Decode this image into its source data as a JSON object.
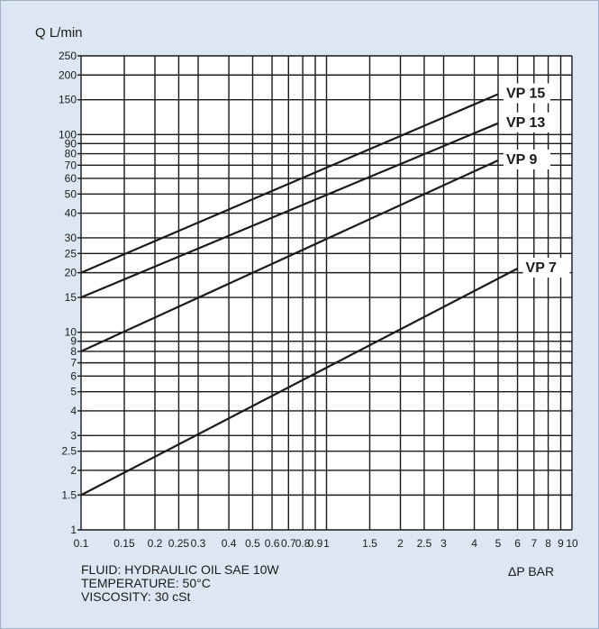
{
  "chart_data": {
    "type": "line",
    "title": "",
    "ylabel": "Q L/min",
    "xlabel": "ΔP BAR",
    "x_scale": "log",
    "y_scale": "log",
    "xlim": [
      0.1,
      10
    ],
    "ylim": [
      1,
      250
    ],
    "grid": true,
    "x_ticks": [
      0.1,
      0.15,
      0.2,
      0.25,
      0.3,
      0.4,
      0.5,
      0.6,
      0.7,
      0.8,
      0.9,
      1,
      1.5,
      2,
      2.5,
      3,
      4,
      5,
      6,
      7,
      8,
      9,
      10
    ],
    "x_tick_labels": [
      "0.1",
      "0.15",
      "0.2",
      "0.25",
      "0.3",
      "0.4",
      "0.5",
      "0.6",
      "0.7",
      "0.8",
      "0.9",
      "1",
      "1.5",
      "2",
      "2.5",
      "3",
      "4",
      "5",
      "6",
      "7",
      "8",
      "9",
      "10"
    ],
    "y_ticks": [
      1,
      1.5,
      2,
      2.5,
      3,
      4,
      5,
      6,
      7,
      8,
      9,
      10,
      15,
      20,
      25,
      30,
      40,
      50,
      60,
      70,
      80,
      90,
      100,
      150,
      200,
      250
    ],
    "y_tick_labels": [
      "1",
      "1.5",
      "2",
      "2.5",
      "3",
      "4",
      "5",
      "6",
      "7",
      "8",
      "9",
      "10",
      "15",
      "20",
      "25",
      "30",
      "40",
      "50",
      "60",
      "70",
      "80",
      "90",
      "100",
      "150",
      "200",
      "250"
    ],
    "series": [
      {
        "name": "VP 15",
        "x": [
          0.1,
          5
        ],
        "y": [
          20,
          160
        ]
      },
      {
        "name": "VP 13",
        "x": [
          0.1,
          5
        ],
        "y": [
          15,
          114
        ]
      },
      {
        "name": "VP 9",
        "x": [
          0.1,
          5
        ],
        "y": [
          8,
          74
        ]
      },
      {
        "name": "VP 7",
        "x": [
          0.1,
          6
        ],
        "y": [
          1.5,
          21
        ]
      }
    ]
  },
  "notes": {
    "fluid": "FLUID: HYDRAULIC OIL SAE 10W",
    "temperature": "TEMPERATURE: 50°C",
    "viscosity": "VISCOSITY: 30 cSt"
  },
  "colors": {
    "background": "#dde7f3",
    "plot_area": "#ffffff",
    "lines": "#1a1a1a"
  }
}
